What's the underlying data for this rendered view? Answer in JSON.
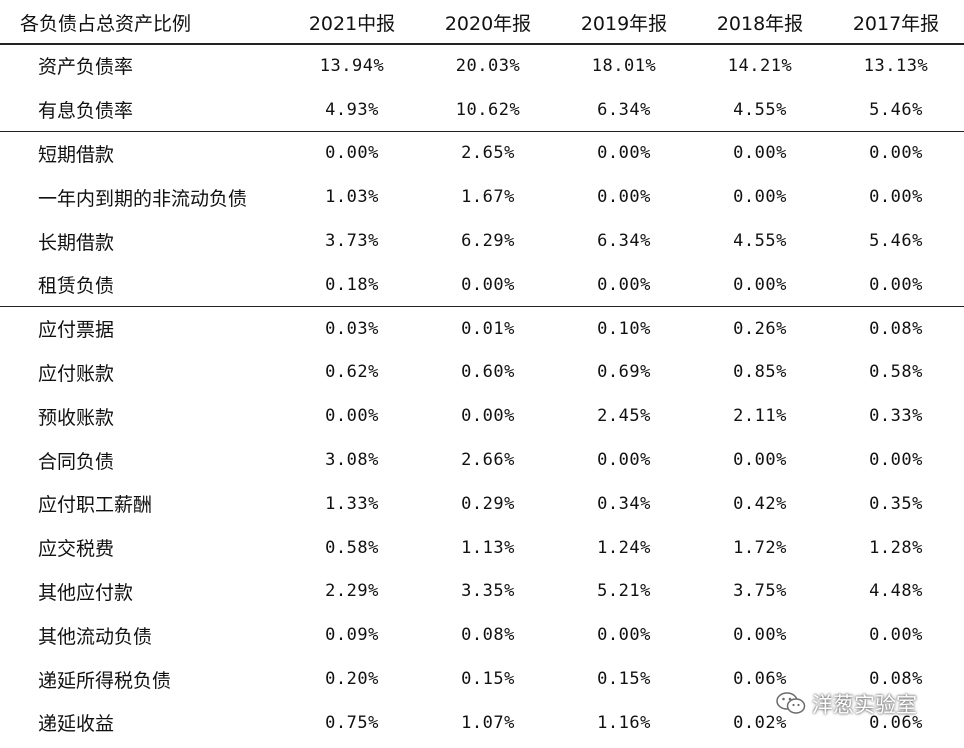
{
  "table": {
    "header": {
      "label": "各负债占总资产比例",
      "periods": [
        "2021中报",
        "2020年报",
        "2019年报",
        "2018年报",
        "2017年报"
      ]
    },
    "rows": [
      {
        "label": "资产负债率",
        "values": [
          "13.94%",
          "20.03%",
          "18.01%",
          "14.21%",
          "13.13%"
        ]
      },
      {
        "label": "有息负债率",
        "values": [
          "4.93%",
          "10.62%",
          "6.34%",
          "4.55%",
          "5.46%"
        ]
      },
      {
        "label": "短期借款",
        "values": [
          "0.00%",
          "2.65%",
          "0.00%",
          "0.00%",
          "0.00%"
        ]
      },
      {
        "label": "一年内到期的非流动负债",
        "values": [
          "1.03%",
          "1.67%",
          "0.00%",
          "0.00%",
          "0.00%"
        ]
      },
      {
        "label": "长期借款",
        "values": [
          "3.73%",
          "6.29%",
          "6.34%",
          "4.55%",
          "5.46%"
        ]
      },
      {
        "label": "租赁负债",
        "values": [
          "0.18%",
          "0.00%",
          "0.00%",
          "0.00%",
          "0.00%"
        ]
      },
      {
        "label": "应付票据",
        "values": [
          "0.03%",
          "0.01%",
          "0.10%",
          "0.26%",
          "0.08%"
        ]
      },
      {
        "label": "应付账款",
        "values": [
          "0.62%",
          "0.60%",
          "0.69%",
          "0.85%",
          "0.58%"
        ]
      },
      {
        "label": "预收账款",
        "values": [
          "0.00%",
          "0.00%",
          "2.45%",
          "2.11%",
          "0.33%"
        ]
      },
      {
        "label": "合同负债",
        "values": [
          "3.08%",
          "2.66%",
          "0.00%",
          "0.00%",
          "0.00%"
        ]
      },
      {
        "label": "应付职工薪酬",
        "values": [
          "1.33%",
          "0.29%",
          "0.34%",
          "0.42%",
          "0.35%"
        ]
      },
      {
        "label": "应交税费",
        "values": [
          "0.58%",
          "1.13%",
          "1.24%",
          "1.72%",
          "1.28%"
        ]
      },
      {
        "label": "其他应付款",
        "values": [
          "2.29%",
          "3.35%",
          "5.21%",
          "3.75%",
          "4.48%"
        ]
      },
      {
        "label": "其他流动负债",
        "values": [
          "0.09%",
          "0.08%",
          "0.00%",
          "0.00%",
          "0.00%"
        ]
      },
      {
        "label": "递延所得税负债",
        "values": [
          "0.20%",
          "0.15%",
          "0.15%",
          "0.06%",
          "0.08%"
        ]
      },
      {
        "label": "递延收益",
        "values": [
          "0.75%",
          "1.07%",
          "1.16%",
          "0.02%",
          "0.06%"
        ]
      }
    ]
  },
  "watermark": {
    "text": "洋葱实验室",
    "icon": "wechat-icon"
  }
}
